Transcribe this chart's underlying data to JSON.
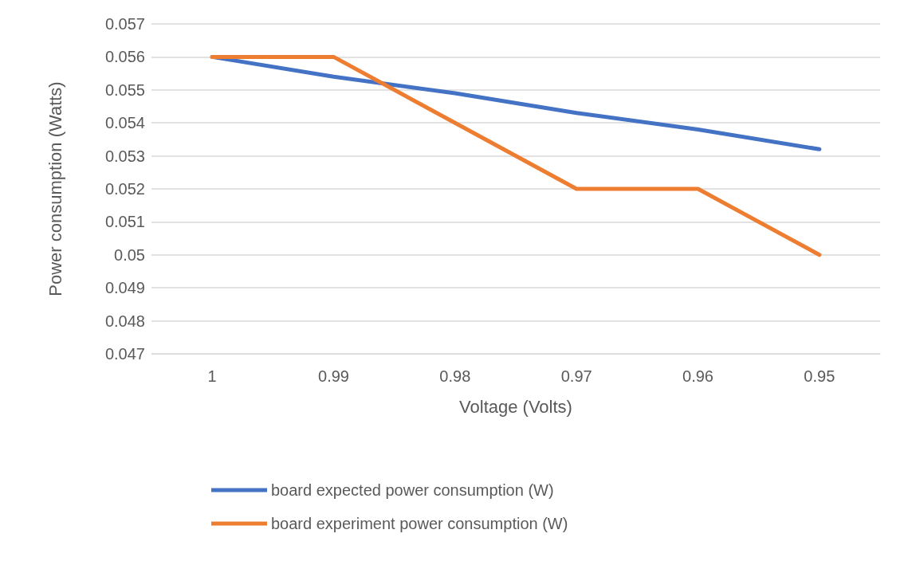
{
  "chart_data": {
    "type": "line",
    "xlabel": "Voltage (Volts)",
    "ylabel": "Power consumption (Watts)",
    "categories": [
      "1",
      "0.99",
      "0.98",
      "0.97",
      "0.96",
      "0.95"
    ],
    "series": [
      {
        "name": "board expected power consumption (W)",
        "color": "#4472c4",
        "values": [
          0.056,
          0.0554,
          0.0549,
          0.0543,
          0.0538,
          0.0532
        ]
      },
      {
        "name": "board experiment power consumption (W)",
        "color": "#ed7d31",
        "values": [
          0.056,
          0.056,
          0.054,
          0.052,
          0.052,
          0.05
        ]
      }
    ],
    "ylim": [
      0.047,
      0.057
    ],
    "yticks": [
      0.047,
      0.048,
      0.049,
      0.05,
      0.051,
      0.052,
      0.053,
      0.054,
      0.055,
      0.056,
      0.057
    ],
    "grid": "y",
    "legend": "bottom",
    "marker": "none",
    "line_style": "solid"
  }
}
